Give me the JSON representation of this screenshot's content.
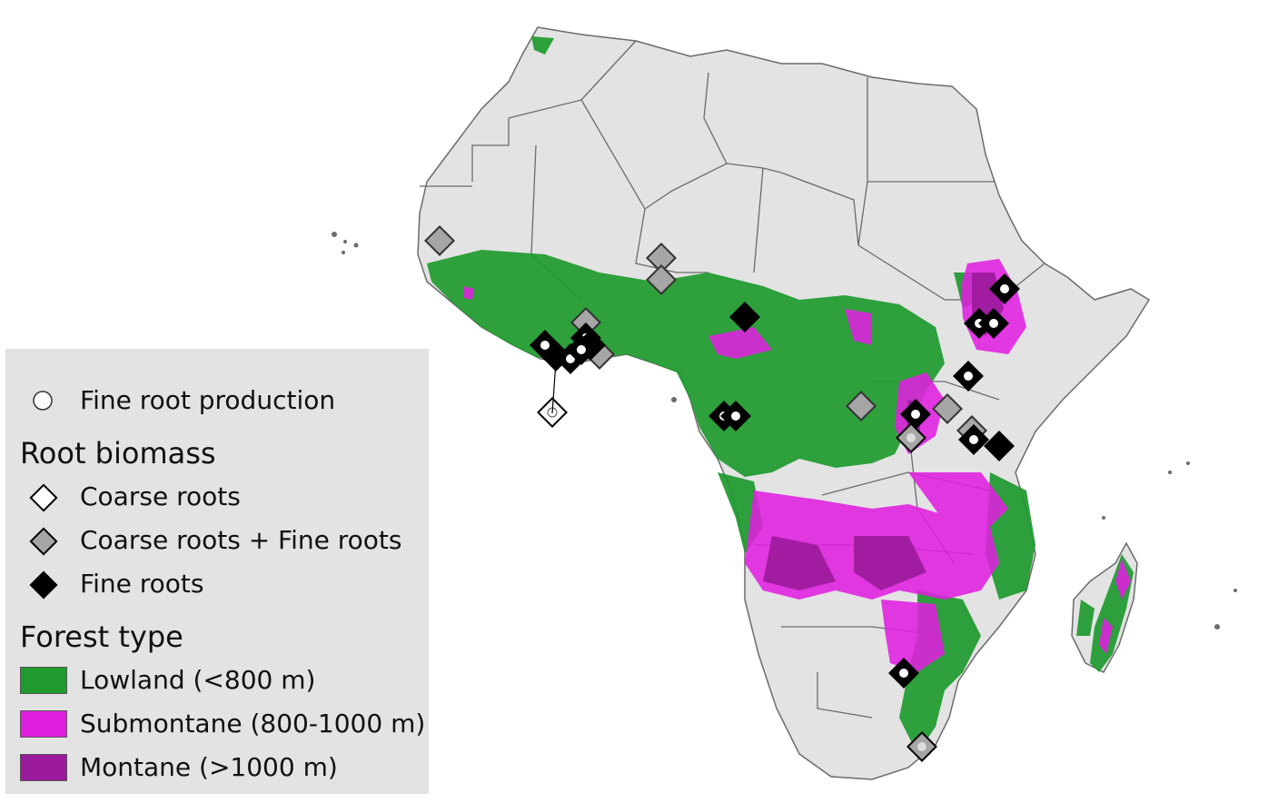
{
  "legend": {
    "fine_root_production": "Fine root production",
    "root_biomass_title": "Root biomass",
    "coarse_roots": "Coarse roots",
    "coarse_plus_fine": "Coarse roots + Fine roots",
    "fine_roots": "Fine roots",
    "forest_type_title": "Forest type",
    "lowland": "Lowland (<800 m)",
    "submontane": "Submontane (800-1000 m)",
    "montane": "Montane (>1000 m)"
  },
  "colors": {
    "land": "#e3e3e3",
    "border": "#6b6b6b",
    "lowland": "#1e9a2e",
    "submontane": "#e020e0",
    "montane": "#9b1a9b",
    "coarse": "#ffffff",
    "coarse_fine": "#a6a6a6",
    "fine": "#000000"
  },
  "site_types": [
    "fine_roots",
    "fine_roots+production",
    "coarse_plus_fine",
    "coarse_plus_fine+production",
    "coarse+production"
  ]
}
